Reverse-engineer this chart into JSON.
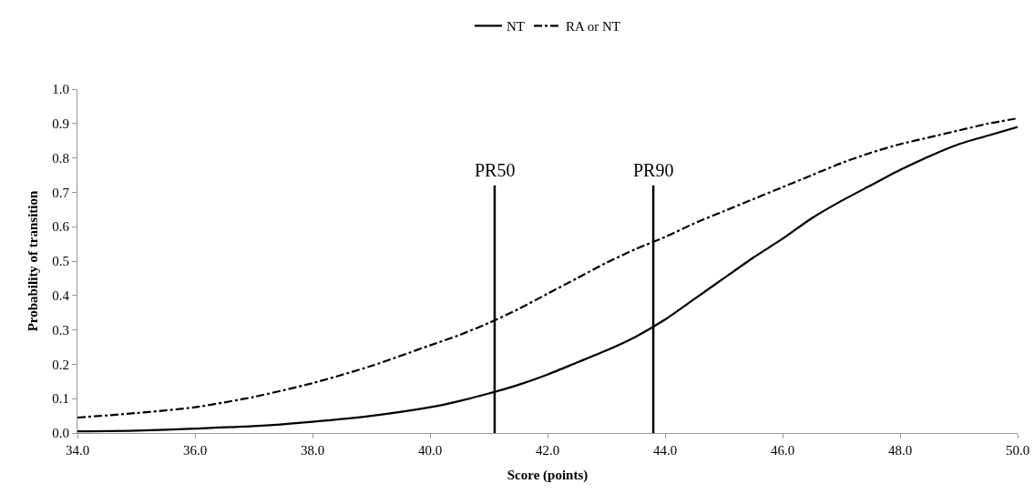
{
  "chart_data": {
    "type": "line",
    "xlabel": "Score (points)",
    "ylabel": "Probability of transition",
    "x": [
      34,
      35,
      36,
      37,
      38,
      39,
      40,
      40.5,
      41,
      41.5,
      42,
      42.5,
      43,
      43.5,
      44,
      44.5,
      45,
      45.5,
      46,
      46.5,
      47,
      47.5,
      48,
      48.5,
      49,
      49.5,
      50
    ],
    "series": [
      {
        "name": "NT",
        "color": "#000000",
        "line_style": "solid",
        "values": [
          0.005,
          0.007,
          0.013,
          0.02,
          0.033,
          0.05,
          0.075,
          0.093,
          0.115,
          0.14,
          0.17,
          0.205,
          0.24,
          0.28,
          0.33,
          0.39,
          0.45,
          0.51,
          0.565,
          0.625,
          0.675,
          0.72,
          0.765,
          0.805,
          0.84,
          0.865,
          0.89
        ]
      },
      {
        "name": "RA or NT",
        "color": "#000000",
        "line_style": "dashdot",
        "values": [
          0.045,
          0.058,
          0.075,
          0.105,
          0.145,
          0.195,
          0.255,
          0.285,
          0.32,
          0.36,
          0.405,
          0.45,
          0.495,
          0.535,
          0.57,
          0.61,
          0.645,
          0.68,
          0.715,
          0.75,
          0.785,
          0.815,
          0.84,
          0.86,
          0.88,
          0.9,
          0.915
        ]
      }
    ],
    "xlim": [
      34,
      50
    ],
    "xticks": [
      {
        "value": 34,
        "label": "34.0"
      },
      {
        "value": 36,
        "label": "36.0"
      },
      {
        "value": 38,
        "label": "38.0"
      },
      {
        "value": 40,
        "label": "40.0"
      },
      {
        "value": 42,
        "label": "42.0"
      },
      {
        "value": 44,
        "label": "44.0"
      },
      {
        "value": 46,
        "label": "46.0"
      },
      {
        "value": 48,
        "label": "48.0"
      },
      {
        "value": 50,
        "label": "50.0"
      }
    ],
    "ylim": [
      0,
      1
    ],
    "yticks": [
      {
        "value": 0,
        "label": "0.0"
      },
      0.1,
      0.2,
      0.3,
      0.4,
      0.5,
      0.6,
      0.7,
      0.8,
      0.9,
      {
        "value": 1,
        "label": "1.0"
      }
    ],
    "ref_lines": [
      {
        "axis": "x",
        "value": 41.1,
        "label": "PR50",
        "color": "#000000"
      },
      {
        "axis": "x",
        "value": 43.8,
        "label": "PR90",
        "color": "#000000"
      }
    ],
    "grid": false,
    "legend": "top",
    "marker": "none"
  }
}
